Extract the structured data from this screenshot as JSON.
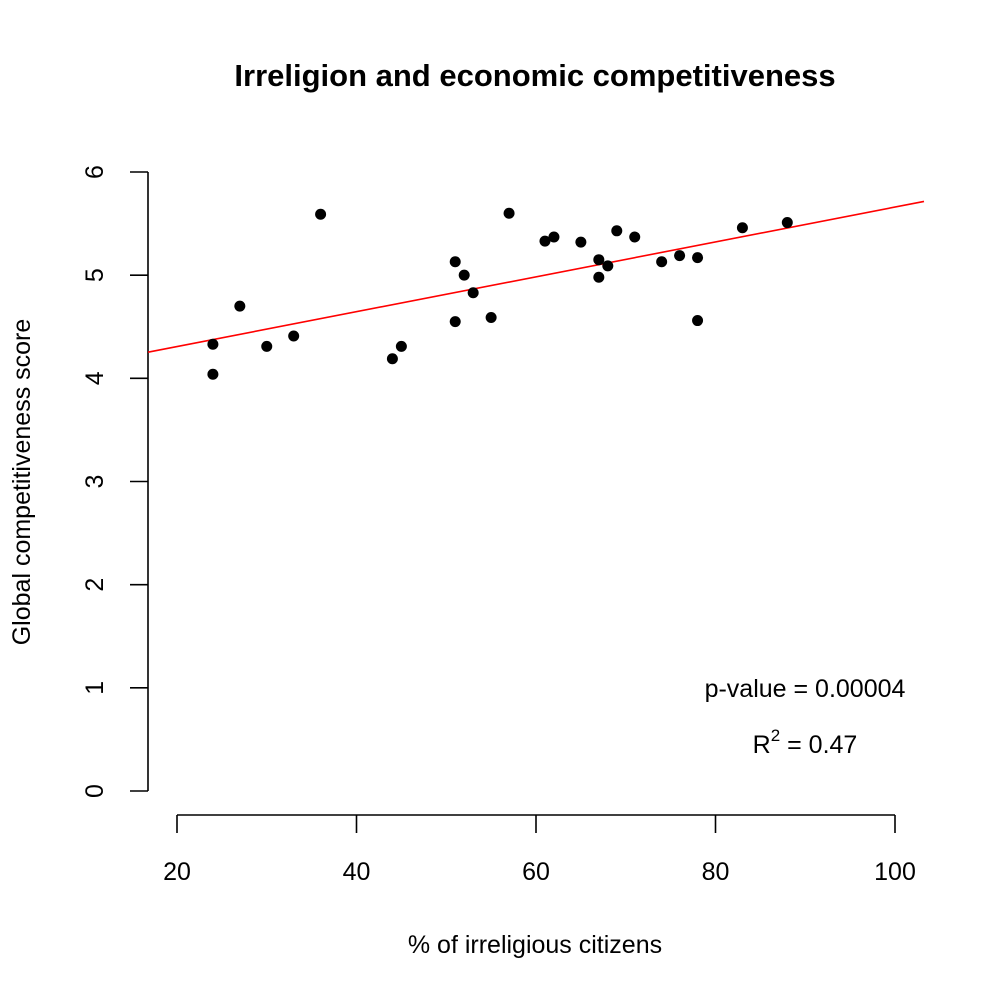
{
  "chart_data": {
    "type": "scatter",
    "title": "Irreligion and economic competitiveness",
    "xlabel": "% of irreligious citizens",
    "ylabel": "Global competitiveness score",
    "xlim": [
      20,
      100
    ],
    "ylim": [
      0,
      6
    ],
    "x_ticks": [
      20,
      40,
      60,
      80,
      100
    ],
    "y_ticks": [
      0,
      1,
      2,
      3,
      4,
      5,
      6
    ],
    "grid": false,
    "point_color": "#000000",
    "line_color": "#ff0000",
    "points": [
      {
        "x": 24,
        "y": 4.33
      },
      {
        "x": 24,
        "y": 4.04
      },
      {
        "x": 27,
        "y": 4.7
      },
      {
        "x": 30,
        "y": 4.31
      },
      {
        "x": 33,
        "y": 4.41
      },
      {
        "x": 36,
        "y": 5.59
      },
      {
        "x": 44,
        "y": 4.19
      },
      {
        "x": 45,
        "y": 4.31
      },
      {
        "x": 51,
        "y": 5.13
      },
      {
        "x": 51,
        "y": 4.55
      },
      {
        "x": 52,
        "y": 5.0
      },
      {
        "x": 53,
        "y": 4.83
      },
      {
        "x": 55,
        "y": 4.59
      },
      {
        "x": 57,
        "y": 5.6
      },
      {
        "x": 61,
        "y": 5.33
      },
      {
        "x": 62,
        "y": 5.37
      },
      {
        "x": 65,
        "y": 5.32
      },
      {
        "x": 67,
        "y": 5.15
      },
      {
        "x": 67,
        "y": 4.98
      },
      {
        "x": 68,
        "y": 5.09
      },
      {
        "x": 69,
        "y": 5.43
      },
      {
        "x": 71,
        "y": 5.37
      },
      {
        "x": 74,
        "y": 5.13
      },
      {
        "x": 76,
        "y": 5.19
      },
      {
        "x": 78,
        "y": 5.17
      },
      {
        "x": 78,
        "y": 4.56
      },
      {
        "x": 83,
        "y": 5.46
      },
      {
        "x": 88,
        "y": 5.51
      }
    ],
    "regression_line": {
      "intercept": 3.97,
      "slope": 0.0169
    },
    "annotations": {
      "p_value": "p-value = 0.00004",
      "r2_prefix": "R",
      "r2_sup": "2",
      "r2_suffix": " = 0.47"
    }
  }
}
